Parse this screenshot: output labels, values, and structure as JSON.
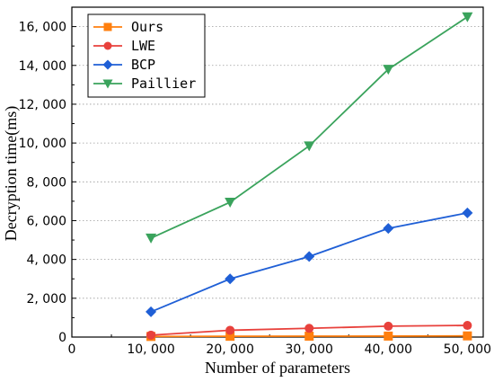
{
  "chart_data": {
    "type": "line",
    "xlabel": "Number of parameters",
    "ylabel": "Decryption time(ms)",
    "xlim": [
      0,
      52000
    ],
    "ylim": [
      0,
      17000
    ],
    "x": [
      10000,
      20000,
      30000,
      40000,
      50000
    ],
    "x_ticks": [
      0,
      10000,
      20000,
      30000,
      40000,
      50000
    ],
    "x_tick_labels": [
      "0",
      "10, 000",
      "20, 000",
      "30, 000",
      "40, 000",
      "50, 000"
    ],
    "y_ticks": [
      0,
      2000,
      4000,
      6000,
      8000,
      10000,
      12000,
      14000,
      16000
    ],
    "y_tick_labels": [
      "0",
      "2, 000",
      "4, 000",
      "6, 000",
      "8, 000",
      "10, 000",
      "12, 000",
      "14, 000",
      "16, 000"
    ],
    "grid": "horizontal dotted",
    "legend_position": "top-left",
    "series": [
      {
        "name": "Ours",
        "color": "#ff7f0e",
        "marker": "square",
        "values": [
          30,
          40,
          45,
          50,
          60
        ]
      },
      {
        "name": "LWE",
        "color": "#e8413c",
        "marker": "circle",
        "values": [
          100,
          350,
          450,
          560,
          600
        ]
      },
      {
        "name": "BCP",
        "color": "#1f5fd6",
        "marker": "diamond",
        "values": [
          1300,
          3000,
          4150,
          5600,
          6400
        ]
      },
      {
        "name": "Paillier",
        "color": "#3aa35c",
        "marker": "triangle-down",
        "values": [
          5100,
          6950,
          9850,
          13800,
          16500
        ]
      }
    ]
  }
}
